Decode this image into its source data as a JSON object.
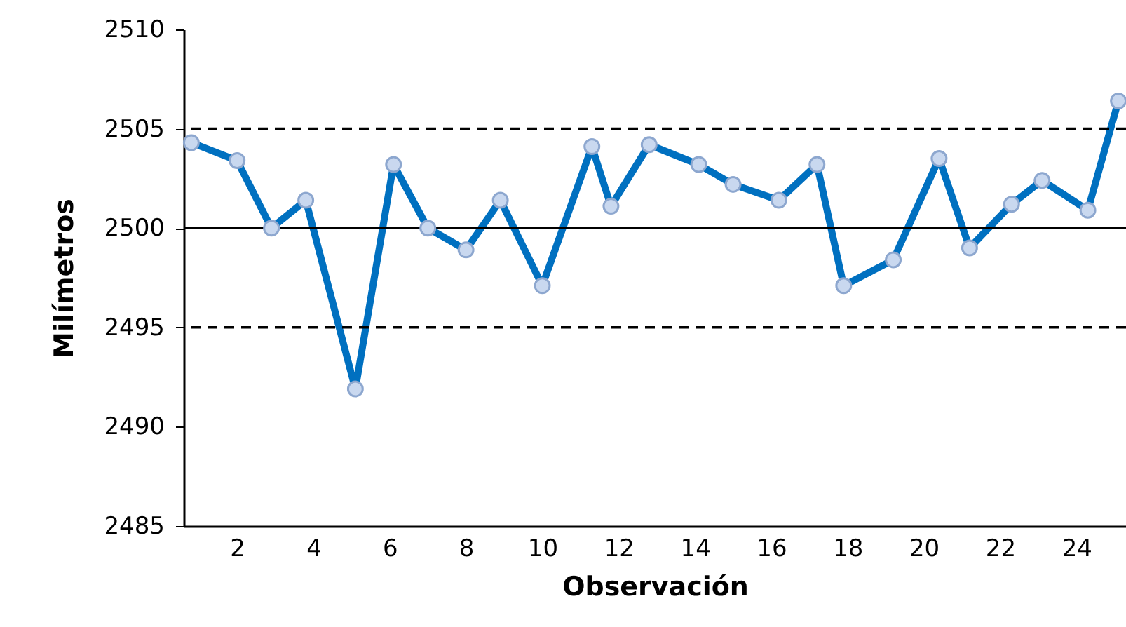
{
  "chart_data": {
    "type": "line",
    "xlabel": "Observación",
    "ylabel": "Milímetros",
    "series": [
      {
        "color": "#0070c0",
        "x": [
          0.8,
          2.0,
          2.9,
          3.8,
          5.1,
          6.1,
          7.0,
          8.0,
          8.9,
          10.0,
          11.3,
          11.8,
          12.8,
          14.1,
          15.0,
          16.2,
          17.2,
          17.9,
          19.2,
          20.4,
          21.2,
          22.3,
          23.1,
          24.3,
          25.1
        ],
        "values": [
          2504.3,
          2503.4,
          2500,
          2501.4,
          2491.9,
          2503.2,
          2500,
          2498.9,
          2501.4,
          2497.1,
          2504.1,
          2501.1,
          2504.2,
          2503.2,
          2502.2,
          2501.4,
          2503.2,
          2497.1,
          2498.4,
          2503.5,
          2499,
          2501.2,
          2502.4,
          2500.9,
          2506.4
        ]
      }
    ],
    "xlim": [
      0.6,
      25.3
    ],
    "xticks": [
      2,
      4,
      6,
      8,
      10,
      12,
      14,
      16,
      18,
      20,
      22,
      24
    ],
    "ylim": [
      2485,
      2510
    ],
    "yticks": [
      2485,
      2490,
      2495,
      2500,
      2505,
      2510
    ],
    "ref_lines": [
      {
        "axis": "y",
        "value": 2505,
        "color": "#000000",
        "line_style": "dashed"
      },
      {
        "axis": "y",
        "value": 2500,
        "color": "#000000",
        "line_style": "solid"
      },
      {
        "axis": "y",
        "value": 2495,
        "color": "#000000",
        "line_style": "dashed"
      }
    ],
    "marker": "circle",
    "line_style": "solid",
    "grid": false
  }
}
